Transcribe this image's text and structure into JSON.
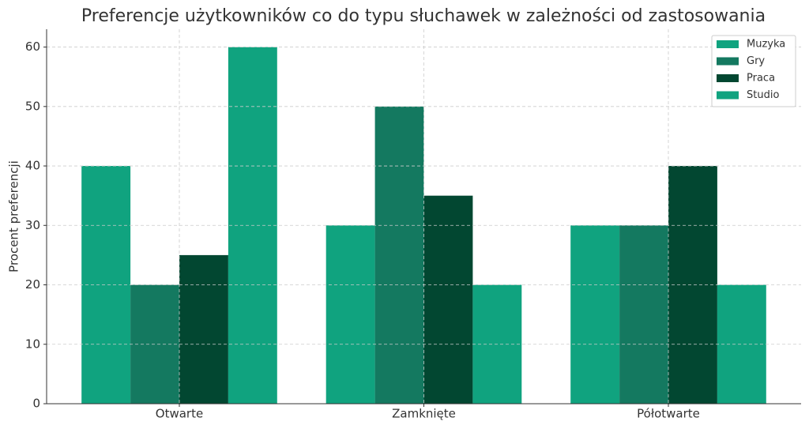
{
  "chart_data": {
    "type": "bar",
    "title": "Preferencje użytkowników co do typu słuchawek w zależności od zastosowania",
    "y_label": "Procent preferencji",
    "categories": [
      "Otwarte",
      "Zamknięte",
      "Półotwarte"
    ],
    "series": [
      {
        "name": "Muzyka",
        "color": "#10a37f",
        "values": [
          40,
          30,
          30
        ]
      },
      {
        "name": "Gry",
        "color": "#147960",
        "values": [
          20,
          50,
          30
        ]
      },
      {
        "name": "Praca",
        "color": "#024731",
        "values": [
          25,
          35,
          40
        ]
      },
      {
        "name": "Studio",
        "color": "#10a37f",
        "values": [
          60,
          20,
          20
        ]
      }
    ],
    "ylim": [
      0,
      63
    ],
    "yticks": [
      0,
      10,
      20,
      30,
      40,
      50,
      60
    ],
    "grid": true,
    "legend": "upper right"
  }
}
